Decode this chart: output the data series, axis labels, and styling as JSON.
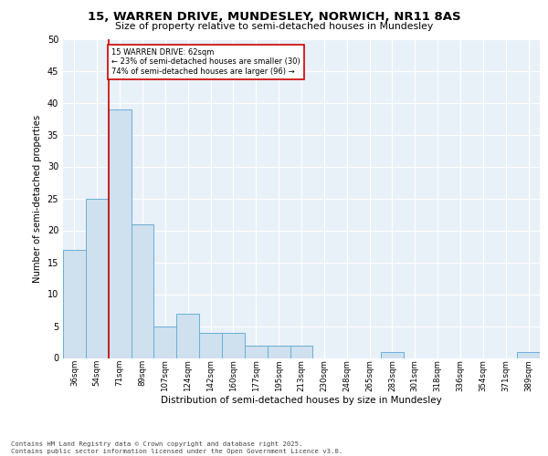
{
  "title_line1": "15, WARREN DRIVE, MUNDESLEY, NORWICH, NR11 8AS",
  "title_line2": "Size of property relative to semi-detached houses in Mundesley",
  "xlabel": "Distribution of semi-detached houses by size in Mundesley",
  "ylabel": "Number of semi-detached properties",
  "categories": [
    "36sqm",
    "54sqm",
    "71sqm",
    "89sqm",
    "107sqm",
    "124sqm",
    "142sqm",
    "160sqm",
    "177sqm",
    "195sqm",
    "213sqm",
    "230sqm",
    "248sqm",
    "265sqm",
    "283sqm",
    "301sqm",
    "318sqm",
    "336sqm",
    "354sqm",
    "371sqm",
    "389sqm"
  ],
  "values": [
    17,
    25,
    39,
    21,
    5,
    7,
    4,
    4,
    2,
    2,
    2,
    0,
    0,
    0,
    1,
    0,
    0,
    0,
    0,
    0,
    1
  ],
  "bar_color": "#cfe0ef",
  "bar_edge_color": "#6aafd6",
  "bar_edge_width": 0.7,
  "red_line_x": 1.5,
  "red_line_label": "15 WARREN DRIVE: 62sqm",
  "pct_smaller": "23% of semi-detached houses are smaller (30)",
  "pct_larger": "74% of semi-detached houses are larger (96)",
  "annotation_box_color": "#ffffff",
  "annotation_box_edgecolor": "#cc0000",
  "ylim": [
    0,
    50
  ],
  "yticks": [
    0,
    5,
    10,
    15,
    20,
    25,
    30,
    35,
    40,
    45,
    50
  ],
  "background_color": "#e8f0f8",
  "grid_color": "#ffffff",
  "footer_line1": "Contains HM Land Registry data © Crown copyright and database right 2025.",
  "footer_line2": "Contains public sector information licensed under the Open Government Licence v3.0."
}
